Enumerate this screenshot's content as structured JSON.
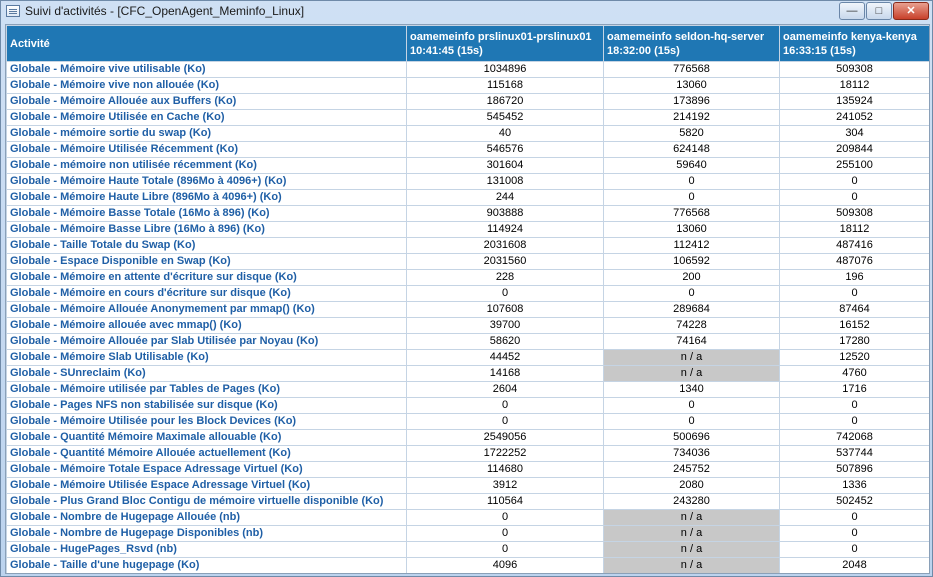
{
  "window": {
    "title": "Suivi d'activités - [CFC_OpenAgent_Meminfo_Linux]"
  },
  "table": {
    "headers": [
      "Activité",
      "oamemeinfo prslinux01-prslinux01 10:41:45 (15s)",
      "oamemeinfo seldon-hq-server 18:32:00 (15s)",
      "oamemeinfo kenya-kenya 16:33:15 (15s)"
    ],
    "rows": [
      {
        "label": "Globale - Mémoire vive utilisable (Ko)",
        "values": [
          "1034896",
          "776568",
          "509308"
        ]
      },
      {
        "label": "Globale - Mémoire vive non allouée (Ko)",
        "values": [
          "115168",
          "13060",
          "18112"
        ]
      },
      {
        "label": "Globale - Mémoire Allouée aux Buffers (Ko)",
        "values": [
          "186720",
          "173896",
          "135924"
        ]
      },
      {
        "label": "Globale - Mémoire Utilisée en Cache (Ko)",
        "values": [
          "545452",
          "214192",
          "241052"
        ]
      },
      {
        "label": "Globale - mémoire sortie du swap (Ko)",
        "values": [
          "40",
          "5820",
          "304"
        ]
      },
      {
        "label": "Globale - Mémoire Utilisée Récemment (Ko)",
        "values": [
          "546576",
          "624148",
          "209844"
        ]
      },
      {
        "label": "Globale - mémoire non utilisée récemment (Ko)",
        "values": [
          "301604",
          "59640",
          "255100"
        ]
      },
      {
        "label": "Globale - Mémoire Haute Totale (896Mo à 4096+) (Ko)",
        "values": [
          "131008",
          "0",
          "0"
        ]
      },
      {
        "label": "Globale - Mémoire Haute Libre (896Mo à 4096+) (Ko)",
        "values": [
          "244",
          "0",
          "0"
        ]
      },
      {
        "label": "Globale - Mémoire Basse Totale (16Mo à 896) (Ko)",
        "values": [
          "903888",
          "776568",
          "509308"
        ]
      },
      {
        "label": "Globale - Mémoire Basse Libre (16Mo à 896) (Ko)",
        "values": [
          "114924",
          "13060",
          "18112"
        ]
      },
      {
        "label": "Globale - Taille Totale du Swap (Ko)",
        "values": [
          "2031608",
          "112412",
          "487416"
        ]
      },
      {
        "label": "Globale - Espace Disponible en Swap (Ko)",
        "values": [
          "2031560",
          "106592",
          "487076"
        ]
      },
      {
        "label": "Globale - Mémoire en attente d'écriture sur disque (Ko)",
        "values": [
          "228",
          "200",
          "196"
        ]
      },
      {
        "label": "Globale - Mémoire en cours d'écriture sur disque (Ko)",
        "values": [
          "0",
          "0",
          "0"
        ]
      },
      {
        "label": "Globale - Mémoire Allouée Anonymement par mmap() (Ko)",
        "values": [
          "107608",
          "289684",
          "87464"
        ]
      },
      {
        "label": "Globale - Mémoire allouée avec mmap() (Ko)",
        "values": [
          "39700",
          "74228",
          "16152"
        ]
      },
      {
        "label": "Globale - Mémoire Allouée par Slab Utilisée par Noyau (Ko)",
        "values": [
          "58620",
          "74164",
          "17280"
        ]
      },
      {
        "label": "Globale - Mémoire Slab Utilisable (Ko)",
        "values": [
          "44452",
          "n / a",
          "12520"
        ]
      },
      {
        "label": "Globale - SUnreclaim (Ko)",
        "values": [
          "14168",
          "n / a",
          "4760"
        ]
      },
      {
        "label": "Globale - Mémoire utilisée par Tables de Pages (Ko)",
        "values": [
          "2604",
          "1340",
          "1716"
        ]
      },
      {
        "label": "Globale - Pages NFS non stabilisée sur disque (Ko)",
        "values": [
          "0",
          "0",
          "0"
        ]
      },
      {
        "label": "Globale - Mémoire Utilisée pour les Block Devices (Ko)",
        "values": [
          "0",
          "0",
          "0"
        ]
      },
      {
        "label": "Globale - Quantité Mémoire Maximale allouable (Ko)",
        "values": [
          "2549056",
          "500696",
          "742068"
        ]
      },
      {
        "label": "Globale - Quantité Mémoire Allouée actuellement (Ko)",
        "values": [
          "1722252",
          "734036",
          "537744"
        ]
      },
      {
        "label": "Globale - Mémoire Totale Espace Adressage Virtuel (Ko)",
        "values": [
          "114680",
          "245752",
          "507896"
        ]
      },
      {
        "label": "Globale - Mémoire Utilisée Espace Adressage Virtuel (Ko)",
        "values": [
          "3912",
          "2080",
          "1336"
        ]
      },
      {
        "label": "Globale - Plus Grand Bloc Contigu de mémoire virtuelle disponible (Ko)",
        "values": [
          "110564",
          "243280",
          "502452"
        ]
      },
      {
        "label": "Globale - Nombre de Hugepage Allouée (nb)",
        "values": [
          "0",
          "n / a",
          "0"
        ]
      },
      {
        "label": "Globale - Nombre de Hugepage Disponibles (nb)",
        "values": [
          "0",
          "n / a",
          "0"
        ]
      },
      {
        "label": "Globale - HugePages_Rsvd (nb)",
        "values": [
          "0",
          "n / a",
          "0"
        ]
      },
      {
        "label": "Globale - Taille d'une hugepage (Ko)",
        "values": [
          "4096",
          "n / a",
          "2048"
        ]
      }
    ]
  }
}
